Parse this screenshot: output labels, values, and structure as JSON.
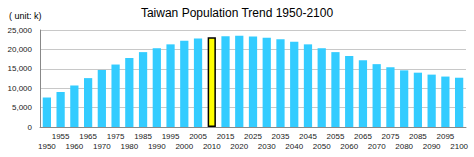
{
  "chart_data": {
    "type": "bar",
    "title": "Taiwan Population Trend 1950-2100",
    "ylabel": "( unit: k)",
    "categories": [
      "1950",
      "1955",
      "1960",
      "1965",
      "1970",
      "1975",
      "1980",
      "1985",
      "1990",
      "1995",
      "2000",
      "2005",
      "2010",
      "2015",
      "2020",
      "2025",
      "2030",
      "2035",
      "2040",
      "2045",
      "2050",
      "2055",
      "2060",
      "2065",
      "2070",
      "2075",
      "2080",
      "2085",
      "2090",
      "2095",
      "2100"
    ],
    "values": [
      7600,
      9000,
      10700,
      12600,
      14700,
      16100,
      17800,
      19300,
      20300,
      21300,
      22200,
      22800,
      23100,
      23400,
      23500,
      23300,
      23000,
      22600,
      22000,
      21300,
      20300,
      19300,
      18300,
      17200,
      16200,
      15400,
      14600,
      14000,
      13500,
      13000,
      12700
    ],
    "colors": [
      "#33ccff",
      "#33ccff",
      "#33ccff",
      "#33ccff",
      "#33ccff",
      "#33ccff",
      "#33ccff",
      "#33ccff",
      "#33ccff",
      "#33ccff",
      "#33ccff",
      "#33ccff",
      "#ffff00",
      "#33ccff",
      "#33ccff",
      "#33ccff",
      "#33ccff",
      "#33ccff",
      "#33ccff",
      "#33ccff",
      "#33ccff",
      "#33ccff",
      "#33ccff",
      "#33ccff",
      "#33ccff",
      "#33ccff",
      "#33ccff",
      "#33ccff",
      "#33ccff",
      "#33ccff",
      "#33ccff"
    ],
    "ylim": [
      0,
      25000
    ],
    "yticks": [
      0,
      {
        "value": 5000,
        "label": "5,000"
      },
      {
        "value": 10000,
        "label": "10,000"
      },
      {
        "value": 15000,
        "label": "15,000"
      },
      {
        "value": 20000,
        "label": "20,000"
      },
      {
        "value": 25000,
        "label": "25,000"
      }
    ],
    "grid": true
  }
}
